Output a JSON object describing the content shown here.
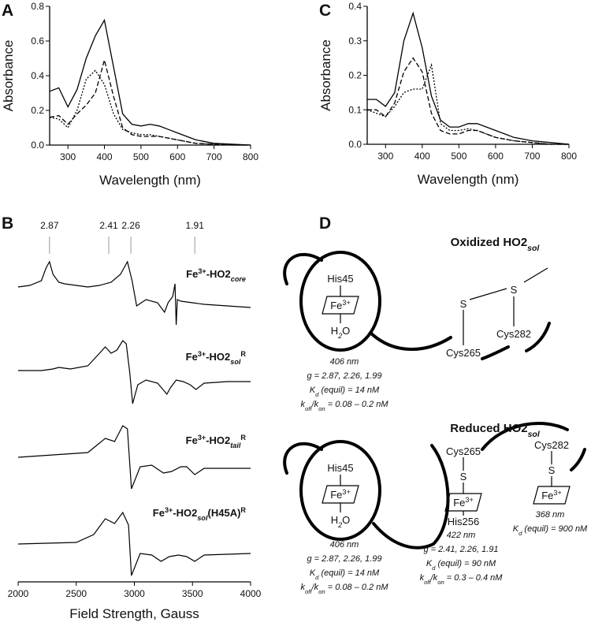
{
  "chart_data": [
    {
      "panel": "A",
      "type": "line",
      "xlabel": "Wavelength (nm)",
      "ylabel": "Absorbance",
      "x": [
        250,
        275,
        300,
        325,
        350,
        375,
        400,
        425,
        450,
        475,
        500,
        525,
        550,
        575,
        600,
        625,
        650,
        700,
        750,
        800
      ],
      "series": [
        {
          "color": "#000000",
          "dash": "solid",
          "values": [
            0.31,
            0.33,
            0.22,
            0.32,
            0.5,
            0.63,
            0.72,
            0.45,
            0.18,
            0.12,
            0.11,
            0.12,
            0.11,
            0.09,
            0.07,
            0.05,
            0.03,
            0.01,
            0.005,
            0
          ]
        },
        {
          "color": "#000000",
          "dash": "dashed",
          "values": [
            0.16,
            0.17,
            0.12,
            0.18,
            0.23,
            0.3,
            0.49,
            0.28,
            0.1,
            0.06,
            0.05,
            0.05,
            0.05,
            0.04,
            0.03,
            0.02,
            0.01,
            0.005,
            0,
            0
          ]
        },
        {
          "color": "#000000",
          "dash": "dotted",
          "values": [
            0.16,
            0.15,
            0.1,
            0.2,
            0.38,
            0.43,
            0.35,
            0.18,
            0.09,
            0.07,
            0.06,
            0.06,
            0.05,
            0.04,
            0.03,
            0.02,
            0.01,
            0.005,
            0,
            0
          ]
        }
      ],
      "xlim": [
        250,
        800
      ],
      "xticks": [
        300,
        400,
        500,
        600,
        700,
        800
      ],
      "ylim": [
        0,
        0.8
      ],
      "yticks": [
        {
          "value": 0,
          "label": "0.0"
        },
        0.2,
        0.4,
        0.6,
        0.8
      ]
    },
    {
      "panel": "C",
      "type": "line",
      "xlabel": "Wavelength (nm)",
      "ylabel": "Absorbance",
      "x": [
        250,
        275,
        300,
        325,
        350,
        375,
        400,
        425,
        450,
        475,
        500,
        525,
        550,
        575,
        600,
        625,
        650,
        700,
        750,
        800
      ],
      "series": [
        {
          "color": "#000000",
          "dash": "solid",
          "values": [
            0.13,
            0.13,
            0.11,
            0.15,
            0.3,
            0.38,
            0.28,
            0.14,
            0.07,
            0.05,
            0.05,
            0.06,
            0.06,
            0.05,
            0.04,
            0.03,
            0.02,
            0.01,
            0.005,
            0
          ]
        },
        {
          "color": "#000000",
          "dash": "dashed",
          "values": [
            0.1,
            0.1,
            0.08,
            0.12,
            0.21,
            0.25,
            0.21,
            0.09,
            0.04,
            0.03,
            0.03,
            0.04,
            0.04,
            0.03,
            0.02,
            0.015,
            0.01,
            0.005,
            0,
            0
          ]
        },
        {
          "color": "#000000",
          "dash": "dotted",
          "values": [
            0.1,
            0.09,
            0.08,
            0.11,
            0.15,
            0.16,
            0.16,
            0.23,
            0.06,
            0.04,
            0.04,
            0.045,
            0.04,
            0.03,
            0.02,
            0.015,
            0.01,
            0.005,
            0,
            0
          ]
        }
      ],
      "xlim": [
        250,
        800
      ],
      "xticks": [
        300,
        400,
        500,
        600,
        700,
        800
      ],
      "ylim": [
        0,
        0.4
      ],
      "yticks": [
        {
          "value": 0,
          "label": "0.0"
        },
        0.1,
        0.2,
        0.3,
        0.4
      ]
    },
    {
      "panel": "B",
      "type": "spectra",
      "xlabel": "Field Strength, Gauss",
      "xlim": [
        2000,
        4000
      ],
      "xticks": [
        2000,
        2500,
        3000,
        3500,
        4000
      ],
      "g_markers": [
        {
          "g": 2.87,
          "field": 2270
        },
        {
          "g": 2.41,
          "field": 2780
        },
        {
          "g": 2.26,
          "field": 2970
        },
        {
          "g": 1.91,
          "field": 3520
        }
      ],
      "series": [
        {
          "label": [
            "Fe",
            {
              "sup": "3+"
            },
            "-HO2",
            {
              "sub": "core"
            }
          ],
          "color": "#000000",
          "x": [
            2000,
            2100,
            2200,
            2240,
            2270,
            2300,
            2350,
            2400,
            2500,
            2600,
            2700,
            2800,
            2880,
            2940,
            2980,
            3020,
            3100,
            3200,
            3260,
            3290,
            3330,
            3350,
            3360,
            3370,
            3400,
            3500,
            3600,
            3800,
            4000
          ],
          "values": [
            0.2,
            0.25,
            0.4,
            0.8,
            1.0,
            0.6,
            0.35,
            0.3,
            0.25,
            0.2,
            0.25,
            0.35,
            0.6,
            1.0,
            0.4,
            -0.4,
            -0.2,
            -0.3,
            -0.6,
            -0.3,
            -0.1,
            0.3,
            -1.0,
            -0.2,
            -0.25,
            -0.3,
            -0.35,
            -0.4,
            -0.45
          ]
        },
        {
          "label": [
            "Fe",
            {
              "sup": "3+"
            },
            "-HO2",
            {
              "sub": "sol"
            },
            {
              "sup": "R"
            }
          ],
          "color": "#000000",
          "x": [
            2000,
            2200,
            2300,
            2350,
            2450,
            2600,
            2700,
            2750,
            2800,
            2850,
            2900,
            2930,
            2960,
            2985,
            3030,
            3100,
            3200,
            3280,
            3310,
            3360,
            3420,
            3480,
            3530,
            3600,
            3800,
            4000
          ],
          "values": [
            0.05,
            0.05,
            0.1,
            0.15,
            0.1,
            0.2,
            0.6,
            0.8,
            0.6,
            0.7,
            1.0,
            0.9,
            0,
            -1.0,
            -0.4,
            -0.25,
            -0.35,
            -0.7,
            -0.5,
            -0.25,
            -0.3,
            -0.4,
            -0.55,
            -0.35,
            -0.3,
            -0.3
          ]
        },
        {
          "label": [
            "Fe",
            {
              "sup": "3+"
            },
            "-HO2",
            {
              "sub": "tail"
            },
            {
              "sup": "R"
            }
          ],
          "color": "#000000",
          "x": [
            2000,
            2600,
            2750,
            2830,
            2900,
            2940,
            2975,
            3050,
            3150,
            3250,
            3320,
            3400,
            3450,
            3520,
            3600,
            4000
          ],
          "values": [
            0,
            0.15,
            0.6,
            0.5,
            1.0,
            0.9,
            -1.0,
            -0.3,
            -0.25,
            -0.5,
            -0.45,
            -0.3,
            -0.3,
            -0.55,
            -0.35,
            -0.35
          ]
        },
        {
          "label": [
            "Fe",
            {
              "sup": "3+"
            },
            "-HO2",
            {
              "sub": "sol"
            },
            "(H45A)",
            {
              "sup": "R"
            }
          ],
          "color": "#000000",
          "x": [
            2000,
            2500,
            2650,
            2750,
            2830,
            2900,
            2950,
            2975,
            3050,
            3150,
            3230,
            3300,
            3380,
            3450,
            3520,
            3600,
            4000
          ],
          "values": [
            0,
            0.05,
            0.3,
            0.8,
            0.65,
            1.0,
            0.6,
            -1.0,
            -0.3,
            -0.35,
            -0.55,
            -0.4,
            -0.35,
            -0.4,
            -0.55,
            -0.35,
            -0.3
          ]
        }
      ]
    }
  ],
  "diagram": {
    "panel": "D",
    "oxidized": {
      "title": [
        "Oxidized HO2",
        {
          "sub": "sol"
        }
      ],
      "his": "His45",
      "fe": [
        "Fe",
        {
          "sup": "3+"
        }
      ],
      "water": [
        "H",
        {
          "sub": "2"
        },
        "O"
      ],
      "s1": "S",
      "s2": "S",
      "cys1": "Cys265",
      "cys2": "Cys282",
      "notes": [
        [
          "406 nm"
        ],
        [
          "g = 2.87, 2.26, 1.99"
        ],
        [
          "K",
          {
            "sub": "d"
          },
          " (equil) = 14 nM"
        ],
        [
          "k",
          {
            "sub": "off"
          },
          "/k",
          {
            "sub": "on"
          },
          " = 0.08 – 0.2 nM"
        ]
      ]
    },
    "reduced": {
      "title": [
        "Reduced HO2",
        {
          "sub": "sol"
        }
      ],
      "his": "His45",
      "fe": [
        "Fe",
        {
          "sup": "3+"
        }
      ],
      "water": [
        "H",
        {
          "sub": "2"
        },
        "O"
      ],
      "notes1": [
        [
          "406 nm"
        ],
        [
          "g = 2.87, 2.26, 1.99"
        ],
        [
          "K",
          {
            "sub": "d"
          },
          " (equil) = 14 nM"
        ],
        [
          "k",
          {
            "sub": "off"
          },
          "/k",
          {
            "sub": "on"
          },
          " = 0.08 – 0.2 nM"
        ]
      ],
      "cys265": "Cys265",
      "s265": "S",
      "fe2": [
        "Fe",
        {
          "sup": "3+"
        }
      ],
      "his256": "His256",
      "notes2": [
        [
          "422 nm"
        ],
        [
          "g = 2.41, 2.26, 1.91"
        ],
        [
          "K",
          {
            "sub": "d"
          },
          " (equil) = 90 nM"
        ],
        [
          "k",
          {
            "sub": "off"
          },
          "/k",
          {
            "sub": "on"
          },
          " = 0.3 – 0.4 nM"
        ]
      ],
      "cys282": "Cys282",
      "s282": "S",
      "fe3": [
        "Fe",
        {
          "sup": "3+"
        }
      ],
      "notes3": [
        [
          "368 nm"
        ],
        [
          "K",
          {
            "sub": "d"
          },
          " (equil) = 900 nM"
        ]
      ]
    }
  }
}
